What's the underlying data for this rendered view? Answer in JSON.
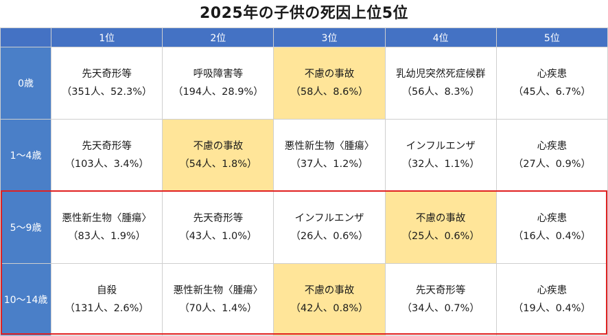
{
  "title": "2025年の子供の死因上位5位",
  "rank_headers": [
    "1位",
    "2位",
    "3位",
    "4位",
    "5位"
  ],
  "rows": [
    {
      "age": "0歳",
      "cells": [
        {
          "cause": "先天奇形等",
          "stat": "（351人、52.3%）",
          "highlight": false
        },
        {
          "cause": "呼吸障害等",
          "stat": "（194人、28.9%）",
          "highlight": false
        },
        {
          "cause": "不慮の事故",
          "stat": "（58人、8.6%）",
          "highlight": true
        },
        {
          "cause": "乳幼児突然死症候群",
          "stat": "（56人、8.3%）",
          "highlight": false
        },
        {
          "cause": "心疾患",
          "stat": "（45人、6.7%）",
          "highlight": false
        }
      ]
    },
    {
      "age": "1～4歳",
      "cells": [
        {
          "cause": "先天奇形等",
          "stat": "（103人、3.4%）",
          "highlight": false
        },
        {
          "cause": "不慮の事故",
          "stat": "（54人、1.8%）",
          "highlight": true
        },
        {
          "cause": "悪性新生物〈腫瘍〉",
          "stat": "（37人、1.2%）",
          "highlight": false
        },
        {
          "cause": "インフルエンザ",
          "stat": "（32人、1.1%）",
          "highlight": false
        },
        {
          "cause": "心疾患",
          "stat": "（27人、0.9%）",
          "highlight": false
        }
      ]
    },
    {
      "age": "5～9歳",
      "cells": [
        {
          "cause": "悪性新生物〈腫瘍〉",
          "stat": "（83人、1.9%）",
          "highlight": false
        },
        {
          "cause": "先天奇形等",
          "stat": "（43人、1.0%）",
          "highlight": false
        },
        {
          "cause": "インフルエンザ",
          "stat": "（26人、0.6%）",
          "highlight": false
        },
        {
          "cause": "不慮の事故",
          "stat": "（25人、0.6%）",
          "highlight": true
        },
        {
          "cause": "心疾患",
          "stat": "（16人、0.4%）",
          "highlight": false
        }
      ]
    },
    {
      "age": "10～14歳",
      "cells": [
        {
          "cause": "自殺",
          "stat": "（131人、2.6%）",
          "highlight": false
        },
        {
          "cause": "悪性新生物〈腫瘍〉",
          "stat": "（70人、1.4%）",
          "highlight": false
        },
        {
          "cause": "不慮の事故",
          "stat": "（42人、0.8%）",
          "highlight": true
        },
        {
          "cause": "先天奇形等",
          "stat": "（34人、0.7%）",
          "highlight": false
        },
        {
          "cause": "心疾患",
          "stat": "（19人、0.4%）",
          "highlight": false
        }
      ]
    }
  ],
  "colors": {
    "header_blue": "#4472c4",
    "highlight_yellow": "#ffe599",
    "frame_red": "#e02020"
  }
}
